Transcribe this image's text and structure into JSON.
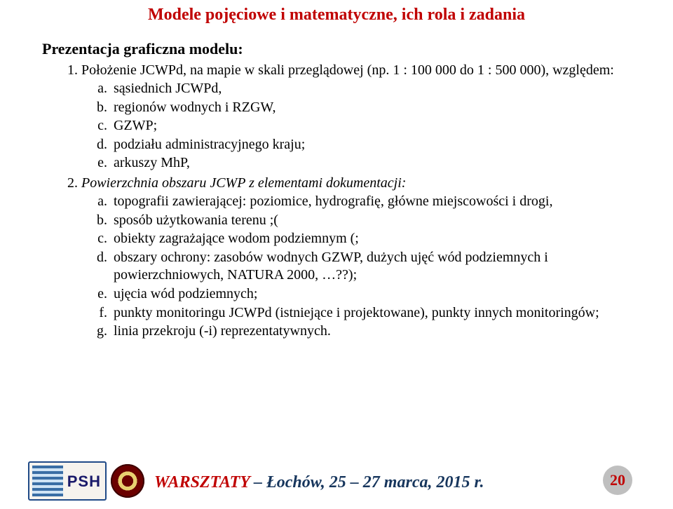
{
  "title": {
    "text": "Modele pojęciowe i matematyczne, ich rola i zadania",
    "color": "#c00000",
    "fontsize": 24
  },
  "subheading": {
    "text": "Prezentacja graficzna modelu:",
    "color": "#000000",
    "fontsize": 22
  },
  "body_fontsize": 20,
  "list1": {
    "item1": {
      "intro": "Położenie JCWPd, na mapie w skali przeglądowej (np. 1 : 100 000 do 1 : 500 000), względem:",
      "a": "sąsiednich JCWPd,",
      "b": "regionów wodnych i RZGW,",
      "c": "GZWP;",
      "d": "podziału administracyjnego kraju;",
      "e": "arkuszy MhP,"
    },
    "item2": {
      "intro": "Powierzchnia obszaru JCWP z elementami dokumentacji:",
      "a": "topografii zawierającej: poziomice, hydrografię, główne miejscowości i drogi,",
      "b": "sposób użytkowania terenu ;(",
      "c": "obiekty zagrażające wodom podziemnym (;",
      "d": "obszary ochrony: zasobów wodnych GZWP, dużych ujęć wód podziemnych i powierzchniowych, NATURA 2000, …??);",
      "e": "ujęcia wód podziemnych;",
      "f": "punkty monitoringu JCWPd (istniejące i projektowane), punkty innych monitoringów;",
      "g": "linia przekroju (-i) reprezentatywnych."
    }
  },
  "footer": {
    "text": "WARSZTATY – Łochów, 25 – 27 marca, 2015 r.",
    "word_accent_color": "#c00000",
    "rest_color": "#17365d",
    "fontsize": 24
  },
  "page_number": {
    "value": "20",
    "bg": "#bfbfbf",
    "color": "#c00000",
    "fontsize": 22
  },
  "logo_psh": {
    "label": "PSH"
  },
  "colors": {
    "background": "#ffffff"
  }
}
